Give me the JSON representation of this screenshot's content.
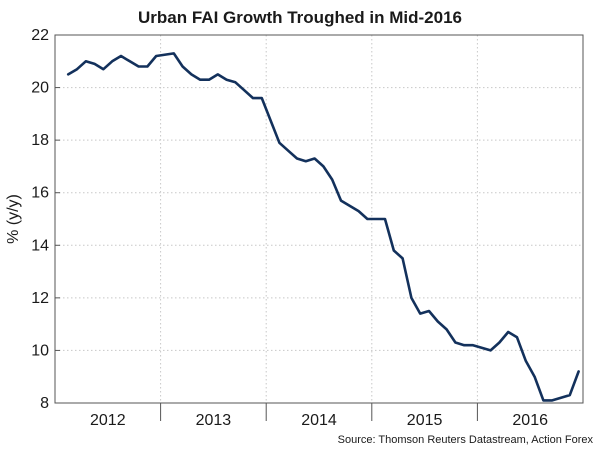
{
  "chart_data": {
    "type": "line",
    "title": "Urban FAI Growth Troughed in Mid-2016",
    "ylabel": "% (y/y)",
    "xlabel": "",
    "source": "Source: Thomson Reuters Datastream, Action Forex",
    "ylim": [
      8,
      22
    ],
    "yticks": [
      8,
      10,
      12,
      14,
      16,
      18,
      20,
      22
    ],
    "xlim": [
      "2012-01",
      "2016-12"
    ],
    "year_labels": [
      "2012",
      "2013",
      "2014",
      "2015",
      "2016"
    ],
    "grid": true,
    "legend": "none",
    "line_color": "#13315c",
    "series": [
      {
        "x": [
          "2012-02",
          "2012-03",
          "2012-04",
          "2012-05",
          "2012-06",
          "2012-07",
          "2012-08",
          "2012-09",
          "2012-10",
          "2012-11",
          "2012-12",
          "2013-02",
          "2013-03",
          "2013-04",
          "2013-05",
          "2013-06",
          "2013-07",
          "2013-08",
          "2013-09",
          "2013-10",
          "2013-11",
          "2013-12",
          "2014-02",
          "2014-03",
          "2014-04",
          "2014-05",
          "2014-06",
          "2014-07",
          "2014-08",
          "2014-09",
          "2014-10",
          "2014-11",
          "2014-12",
          "2015-02",
          "2015-03",
          "2015-04",
          "2015-05",
          "2015-06",
          "2015-07",
          "2015-08",
          "2015-09",
          "2015-10",
          "2015-11",
          "2015-12",
          "2016-02",
          "2016-03",
          "2016-04",
          "2016-05",
          "2016-06",
          "2016-07",
          "2016-08",
          "2016-09",
          "2016-10",
          "2016-11",
          "2016-12"
        ],
        "values": [
          20.5,
          20.7,
          21.0,
          20.9,
          20.7,
          21.0,
          21.2,
          21.0,
          20.8,
          20.8,
          21.2,
          21.3,
          20.8,
          20.5,
          20.3,
          20.3,
          20.5,
          20.3,
          20.2,
          19.9,
          19.6,
          19.6,
          17.9,
          17.6,
          17.3,
          17.2,
          17.3,
          17.0,
          16.5,
          15.7,
          15.5,
          15.3,
          15.0,
          15.0,
          13.8,
          13.5,
          12.0,
          11.4,
          11.5,
          11.1,
          10.8,
          10.3,
          10.2,
          10.2,
          10.0,
          10.3,
          10.7,
          10.5,
          9.6,
          9.0,
          8.1,
          8.1,
          8.2,
          8.3,
          9.2
        ]
      }
    ]
  }
}
